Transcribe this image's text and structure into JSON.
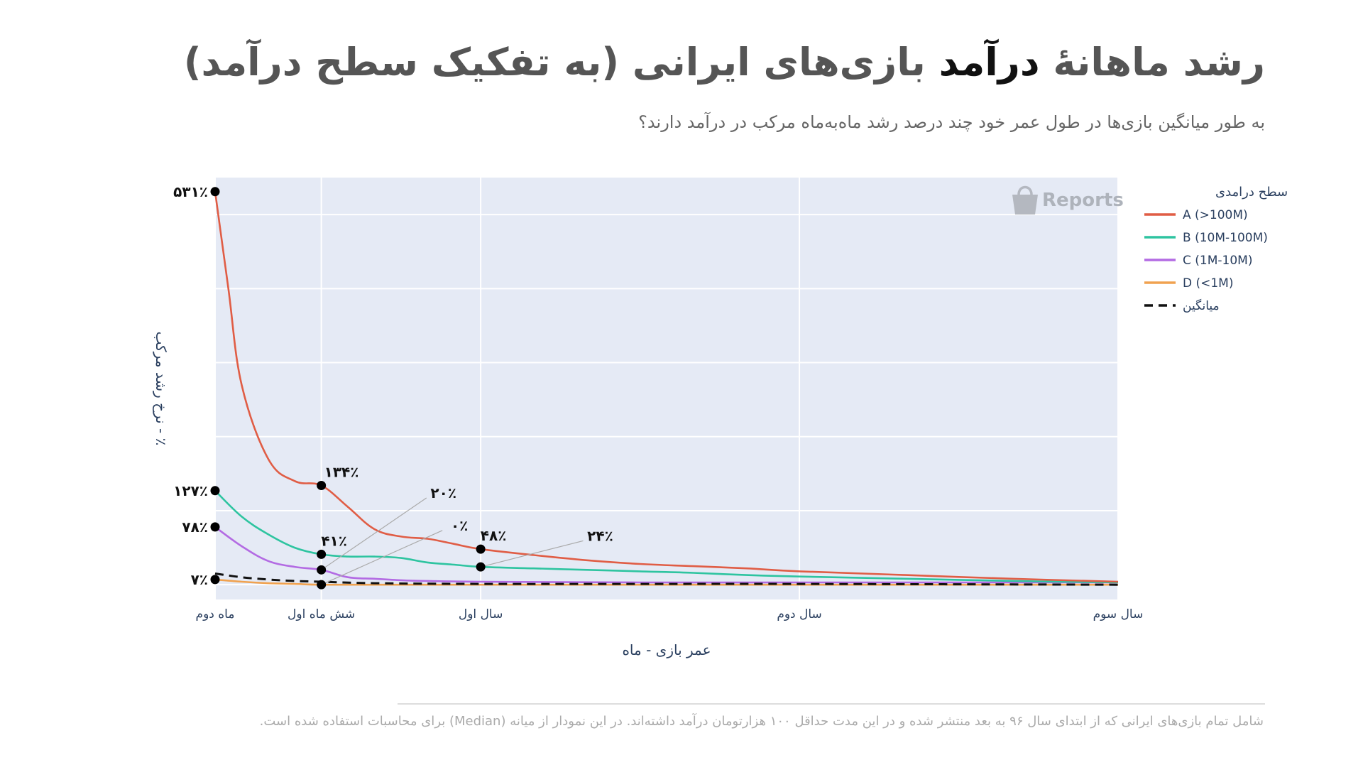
{
  "header": {
    "title_part1": "رشد ماهانهٔ ",
    "title_highlight": "درآمد",
    "title_part2": " بازی‌های ایرانی (به تفکیک سطح درآمد)",
    "subtitle": "به طور میانگین بازی‌ها در طول عمر خود چند درصد رشد ماه‌به‌ماه مرکب در درآمد دارند؟"
  },
  "watermark": {
    "text": "Reports",
    "icon": "shopping-bag-icon"
  },
  "footnote": "شامل تمام بازی‌های ایرانی که از ابتدای سال ۹۶ به بعد منتشر شده و در این مدت حداقل ۱۰۰ هزارتومان درآمد داشته‌اند. در این نمودار از میانه (Median) برای محاسبات استفاده شده است.",
  "chart_data": {
    "type": "line",
    "xlabel": "عمر بازی - ماه",
    "ylabel": "٪ - نرخ رشد مرکب",
    "xlim": [
      2,
      36
    ],
    "ylim": [
      -20,
      550
    ],
    "grid": true,
    "legend_title": "سطح درامدی",
    "legend_position": "right",
    "x_ticks": [
      {
        "x": 2,
        "label": "ماه دوم"
      },
      {
        "x": 6,
        "label": "شش ماه اول"
      },
      {
        "x": 12,
        "label": "سال اول"
      },
      {
        "x": 24,
        "label": "سال دوم"
      },
      {
        "x": 36,
        "label": "سال سوم"
      }
    ],
    "series": [
      {
        "name": "A (>100M)",
        "color": "#e05d45",
        "dash": false,
        "points": [
          [
            2,
            531
          ],
          [
            2.5,
            400
          ],
          [
            3,
            270
          ],
          [
            4,
            170
          ],
          [
            5,
            140
          ],
          [
            6,
            134
          ],
          [
            7,
            105
          ],
          [
            8,
            75
          ],
          [
            9,
            65
          ],
          [
            10,
            62
          ],
          [
            11,
            55
          ],
          [
            12,
            48
          ],
          [
            14,
            40
          ],
          [
            16,
            33
          ],
          [
            18,
            28
          ],
          [
            20,
            25
          ],
          [
            22,
            22
          ],
          [
            24,
            18
          ],
          [
            28,
            13
          ],
          [
            32,
            8
          ],
          [
            36,
            4
          ]
        ]
      },
      {
        "name": "B (10M-100M)",
        "color": "#2ec4a0",
        "dash": false,
        "points": [
          [
            2,
            127
          ],
          [
            3,
            92
          ],
          [
            4,
            68
          ],
          [
            5,
            50
          ],
          [
            6,
            41
          ],
          [
            7,
            38
          ],
          [
            8,
            38
          ],
          [
            9,
            36
          ],
          [
            10,
            30
          ],
          [
            11,
            27
          ],
          [
            12,
            24
          ],
          [
            14,
            22
          ],
          [
            16,
            20
          ],
          [
            18,
            18
          ],
          [
            20,
            16
          ],
          [
            22,
            13
          ],
          [
            24,
            11
          ],
          [
            28,
            8
          ],
          [
            32,
            5
          ],
          [
            36,
            3
          ]
        ]
      },
      {
        "name": "C (1M-10M)",
        "color": "#b36be3",
        "dash": false,
        "points": [
          [
            2,
            78
          ],
          [
            3,
            52
          ],
          [
            4,
            32
          ],
          [
            5,
            24
          ],
          [
            6,
            20
          ],
          [
            7,
            10
          ],
          [
            8,
            8
          ],
          [
            9,
            6
          ],
          [
            10,
            5
          ],
          [
            12,
            4
          ],
          [
            18,
            3
          ],
          [
            24,
            3
          ],
          [
            30,
            3
          ],
          [
            36,
            3
          ]
        ]
      },
      {
        "name": "D (<1M)",
        "color": "#f0a250",
        "dash": false,
        "points": [
          [
            2,
            7
          ],
          [
            3,
            4
          ],
          [
            4,
            2
          ],
          [
            5,
            1
          ],
          [
            6,
            0
          ],
          [
            8,
            0
          ],
          [
            12,
            0
          ],
          [
            18,
            0
          ],
          [
            24,
            0
          ],
          [
            36,
            0
          ]
        ]
      },
      {
        "name": "میانگین",
        "color": "#111111",
        "dash": true,
        "points": [
          [
            2,
            15
          ],
          [
            3,
            10
          ],
          [
            4,
            7
          ],
          [
            5,
            5
          ],
          [
            6,
            4
          ],
          [
            8,
            2
          ],
          [
            12,
            1
          ],
          [
            18,
            1
          ],
          [
            24,
            1
          ],
          [
            36,
            0
          ]
        ]
      }
    ],
    "markers": [
      {
        "x": 2,
        "y": 531
      },
      {
        "x": 2,
        "y": 127
      },
      {
        "x": 2,
        "y": 78
      },
      {
        "x": 2,
        "y": 7
      },
      {
        "x": 6,
        "y": 134
      },
      {
        "x": 6,
        "y": 41
      },
      {
        "x": 6,
        "y": 20
      },
      {
        "x": 6,
        "y": 0
      },
      {
        "x": 12,
        "y": 48
      },
      {
        "x": 12,
        "y": 24
      }
    ],
    "annotations": [
      {
        "text": "۵۳۱٪",
        "x": 2,
        "y": 531,
        "placement": "left"
      },
      {
        "text": "۱۲۷٪",
        "x": 2,
        "y": 127,
        "placement": "left"
      },
      {
        "text": "۷۸٪",
        "x": 2,
        "y": 78,
        "placement": "left"
      },
      {
        "text": "۷٪",
        "x": 2,
        "y": 7,
        "placement": "left"
      },
      {
        "text": "۱۳۴٪",
        "x": 6,
        "y": 134,
        "placement": "above-right"
      },
      {
        "text": "۴۱٪",
        "x": 6,
        "y": 41,
        "placement": "above"
      },
      {
        "text": "۲۰٪",
        "x": 6,
        "y": 20,
        "placement": "callout",
        "label_x": 10.6,
        "label_y": 123
      },
      {
        "text": "۰٪",
        "x": 6,
        "y": 0,
        "placement": "callout",
        "label_x": 11.2,
        "label_y": 79
      },
      {
        "text": "۴۸٪",
        "x": 12,
        "y": 48,
        "placement": "above"
      },
      {
        "text": "۲۴٪",
        "x": 12,
        "y": 24,
        "placement": "callout",
        "label_x": 16.5,
        "label_y": 65
      }
    ]
  }
}
